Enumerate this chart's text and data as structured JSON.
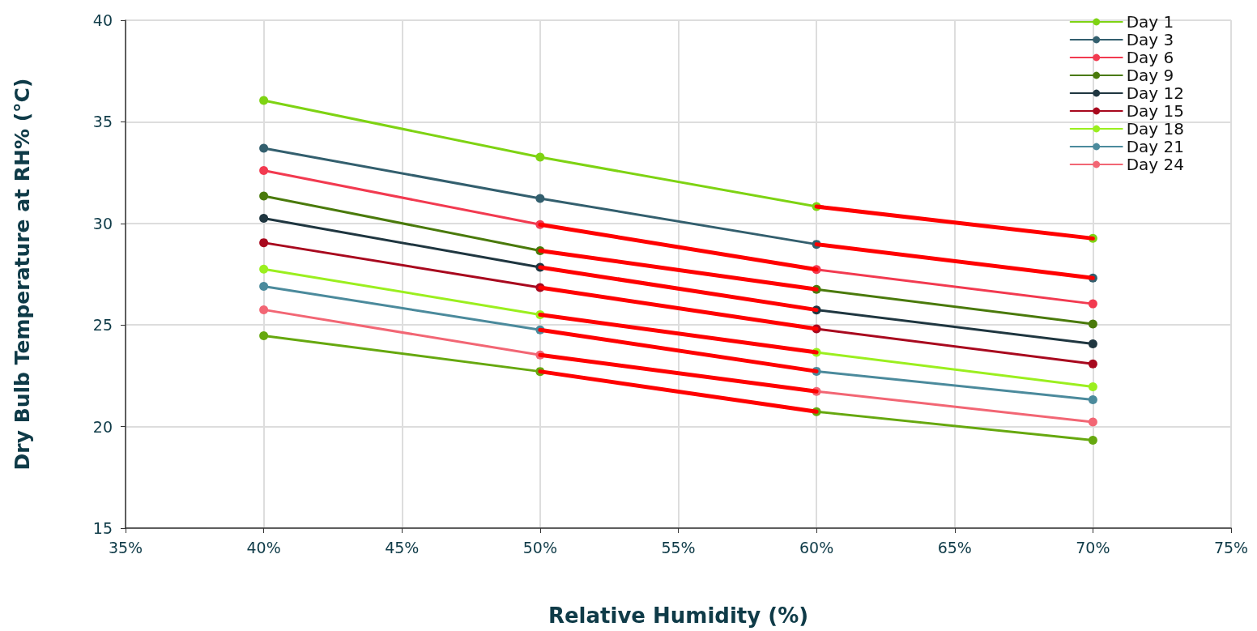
{
  "chart_data": {
    "type": "line",
    "xlabel": "Relative Humidity (%)",
    "ylabel": "Dry Bulb Temperature at RH% (°C)",
    "x": [
      40,
      50,
      60,
      70
    ],
    "xlim": [
      35,
      75
    ],
    "xticks": [
      {
        "value": 35,
        "label": "35%"
      },
      {
        "value": 40,
        "label": "40%"
      },
      {
        "value": 45,
        "label": "45%"
      },
      {
        "value": 50,
        "label": "50%"
      },
      {
        "value": 55,
        "label": "55%"
      },
      {
        "value": 60,
        "label": "60%"
      },
      {
        "value": 65,
        "label": "65%"
      },
      {
        "value": 70,
        "label": "70%"
      },
      {
        "value": 75,
        "label": "75%"
      }
    ],
    "ylim": [
      15,
      40
    ],
    "yticks": [
      15,
      20,
      25,
      30,
      35,
      40
    ],
    "grid": true,
    "legend": "top right",
    "marker": "circle",
    "line_style": "solid",
    "series": [
      {
        "name": "Day 1",
        "color": "#7ed313",
        "values": [
          36.05,
          33.26,
          30.83,
          29.26
        ]
      },
      {
        "name": "Day 3",
        "color": "#335f6e",
        "values": [
          33.7,
          31.23,
          28.97,
          27.31
        ]
      },
      {
        "name": "Day 6",
        "color": "#f23a50",
        "values": [
          32.6,
          29.94,
          27.73,
          26.04
        ]
      },
      {
        "name": "Day 9",
        "color": "#4a7a0b",
        "values": [
          31.35,
          28.66,
          26.75,
          25.05
        ]
      },
      {
        "name": "Day 12",
        "color": "#1f3640",
        "values": [
          30.25,
          27.84,
          25.74,
          24.07
        ]
      },
      {
        "name": "Day 15",
        "color": "#a8081e",
        "values": [
          29.05,
          26.84,
          24.81,
          23.08
        ]
      },
      {
        "name": "Day 18",
        "color": "#9bef1f",
        "values": [
          27.75,
          25.51,
          23.65,
          21.96
        ]
      },
      {
        "name": "Day 21",
        "color": "#4b8a9c",
        "values": [
          26.9,
          24.76,
          22.72,
          21.32
        ]
      },
      {
        "name": "Day 24",
        "color": "#f26674",
        "values": [
          25.75,
          23.52,
          21.73,
          20.22
        ]
      },
      {
        "color": "#66a80f",
        "values": [
          24.47,
          22.71,
          20.73,
          19.33
        ]
      },
      {
        "color": "#ff0000",
        "marker": "none",
        "x": [
          60,
          70
        ],
        "values": [
          30.83,
          29.26
        ]
      },
      {
        "color": "#ff0000",
        "marker": "none",
        "x": [
          60,
          70
        ],
        "values": [
          28.97,
          27.31
        ]
      },
      {
        "color": "#ff0000",
        "marker": "none",
        "x": [
          50,
          60
        ],
        "values": [
          29.94,
          27.73
        ]
      },
      {
        "color": "#ff0000",
        "marker": "none",
        "x": [
          50,
          60
        ],
        "values": [
          28.66,
          26.75
        ]
      },
      {
        "color": "#ff0000",
        "marker": "none",
        "x": [
          50,
          60
        ],
        "values": [
          27.84,
          25.74
        ]
      },
      {
        "color": "#ff0000",
        "marker": "none",
        "x": [
          50,
          60
        ],
        "values": [
          26.84,
          24.81
        ]
      },
      {
        "color": "#ff0000",
        "marker": "none",
        "x": [
          50,
          60
        ],
        "values": [
          25.51,
          23.65
        ]
      },
      {
        "color": "#ff0000",
        "marker": "none",
        "x": [
          50,
          60
        ],
        "values": [
          24.76,
          22.72
        ]
      },
      {
        "color": "#ff0000",
        "marker": "none",
        "x": [
          50,
          60
        ],
        "values": [
          23.52,
          21.73
        ]
      },
      {
        "color": "#ff0000",
        "marker": "none",
        "x": [
          50,
          60
        ],
        "values": [
          22.71,
          20.73
        ]
      }
    ]
  }
}
